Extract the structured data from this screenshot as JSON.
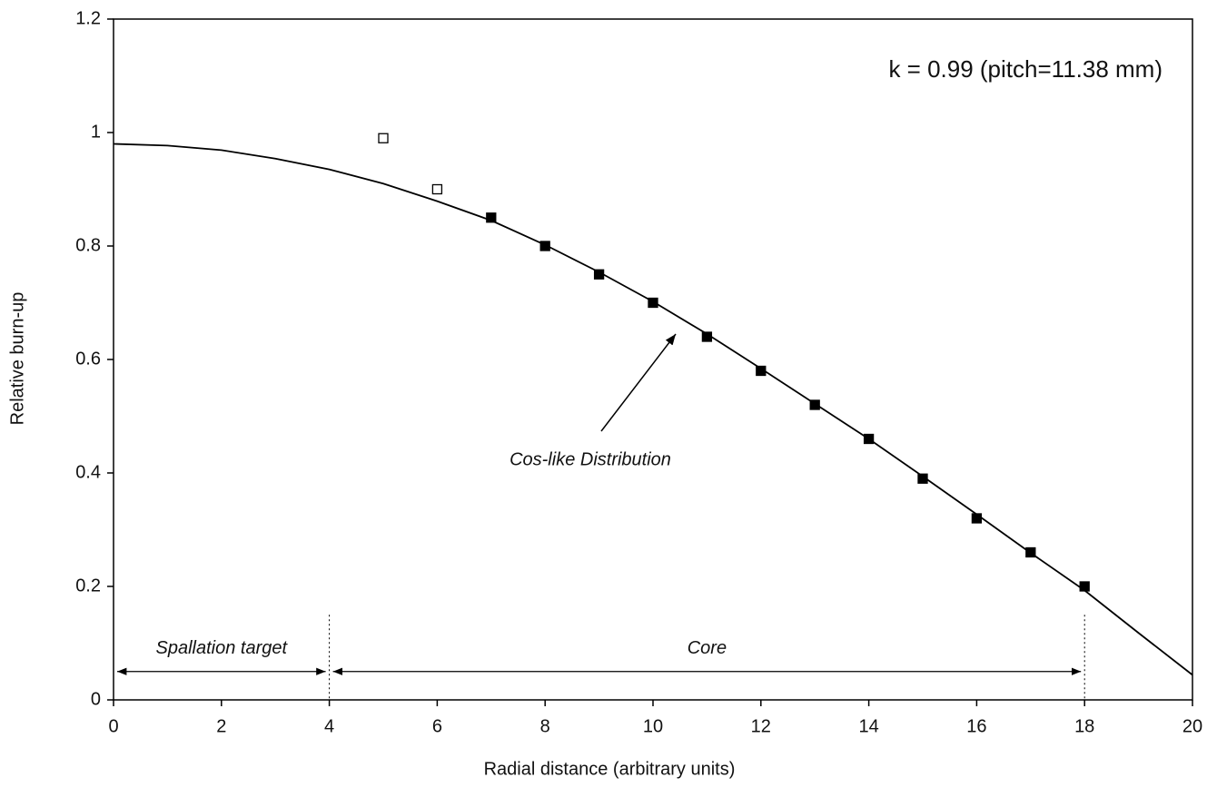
{
  "chart_data": {
    "type": "line",
    "xlabel": "Radial distance (arbitrary units)",
    "ylabel": "Relative burn-up",
    "xlim": [
      0,
      20
    ],
    "xticks": [
      0,
      2,
      4,
      6,
      8,
      10,
      12,
      14,
      16,
      18,
      20
    ],
    "ylim": [
      0,
      1.2
    ],
    "yticks": [
      0,
      0.2,
      0.4,
      0.6,
      0.8,
      1,
      1.2
    ],
    "grid": false,
    "annotations": [
      "k = 0.99 (pitch=11.38 mm)",
      "Cos-like Distribution"
    ],
    "regions": [
      {
        "label": "Spallation target",
        "x": [
          0,
          4
        ]
      },
      {
        "label": "Core",
        "x": [
          4,
          18
        ]
      }
    ],
    "series": [
      {
        "kind": "line",
        "color": "#000000",
        "x": [
          0,
          1,
          2,
          3,
          4,
          5,
          6,
          7,
          8,
          9,
          10,
          11,
          12,
          13,
          14,
          15,
          16,
          17,
          18,
          19,
          20
        ],
        "values": [
          0.98,
          0.977,
          0.969,
          0.954,
          0.935,
          0.91,
          0.879,
          0.845,
          0.802,
          0.754,
          0.702,
          0.645,
          0.584,
          0.522,
          0.46,
          0.394,
          0.327,
          0.259,
          0.193,
          0.118,
          0.044
        ]
      },
      {
        "kind": "scatter",
        "marker": "open",
        "color": "#000000",
        "x": [
          5,
          6
        ],
        "values": [
          0.99,
          0.9
        ]
      },
      {
        "kind": "scatter",
        "marker": "filled",
        "color": "#000000",
        "x": [
          7,
          8,
          9,
          10,
          11,
          12,
          13,
          14,
          15,
          16,
          17,
          18
        ],
        "values": [
          0.85,
          0.8,
          0.75,
          0.7,
          0.64,
          0.58,
          0.52,
          0.46,
          0.39,
          0.32,
          0.26,
          0.2
        ]
      }
    ]
  }
}
